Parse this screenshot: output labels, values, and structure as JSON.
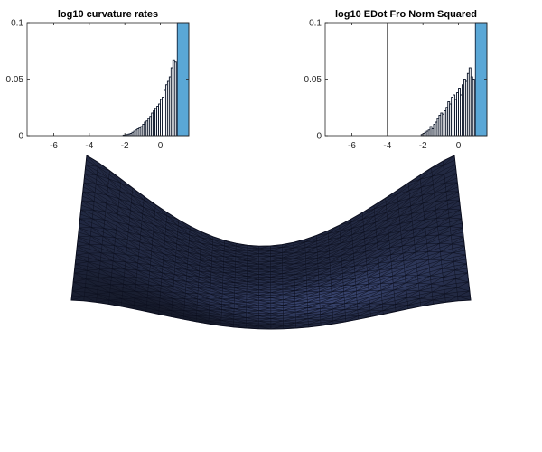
{
  "colors": {
    "bar_face": "#ffffff",
    "bar_edge": "#0a1428",
    "highlight_bar": "#5aa7d6",
    "mesh_fill": "#3d4a78",
    "mesh_edge": "#0b0e1e",
    "axis": "#262626"
  },
  "chart_data": [
    {
      "type": "bar",
      "title": "log10 curvature rates",
      "xlim": [
        -7.5,
        1.6
      ],
      "ylim": [
        0,
        0.1
      ],
      "xticks": [
        -6,
        -4,
        -2,
        0
      ],
      "yticks": [
        0,
        0.05,
        0.1
      ],
      "xticklabels": [
        "-6",
        "-4",
        "-2",
        "0"
      ],
      "yticklabels": [
        "0",
        "0.05",
        "0.1"
      ],
      "reference_line_x": -3,
      "bin_width": 0.1,
      "bins_x": [
        -2.05,
        -1.95,
        -1.85,
        -1.75,
        -1.65,
        -1.55,
        -1.45,
        -1.35,
        -1.25,
        -1.15,
        -1.05,
        -0.95,
        -0.85,
        -0.75,
        -0.65,
        -0.55,
        -0.45,
        -0.35,
        -0.25,
        -0.15,
        -0.05,
        0.05,
        0.15,
        0.25,
        0.35,
        0.45,
        0.55,
        0.65,
        0.75,
        0.85
      ],
      "values": [
        0.0005,
        0.0008,
        0.001,
        0.0015,
        0.002,
        0.003,
        0.004,
        0.005,
        0.006,
        0.007,
        0.008,
        0.01,
        0.012,
        0.013,
        0.015,
        0.017,
        0.02,
        0.022,
        0.024,
        0.026,
        0.028,
        0.032,
        0.034,
        0.04,
        0.045,
        0.048,
        0.052,
        0.06,
        0.067,
        0.065
      ],
      "highlight_bar": {
        "x_start": 0.95,
        "x_end": 1.6,
        "value": 0.1
      }
    },
    {
      "type": "bar",
      "title": "log10 EDot Fro Norm Squared",
      "xlim": [
        -7.5,
        1.6
      ],
      "ylim": [
        0,
        0.1
      ],
      "xticks": [
        -6,
        -4,
        -2,
        0
      ],
      "yticks": [
        0,
        0.05,
        0.1
      ],
      "xticklabels": [
        "-6",
        "-4",
        "-2",
        "0"
      ],
      "yticklabels": [
        "0",
        "0.05",
        "0.1"
      ],
      "reference_line_x": -4,
      "bin_width": 0.1,
      "bins_x": [
        -2.05,
        -1.95,
        -1.85,
        -1.75,
        -1.65,
        -1.55,
        -1.45,
        -1.35,
        -1.25,
        -1.15,
        -1.05,
        -0.95,
        -0.85,
        -0.75,
        -0.65,
        -0.55,
        -0.45,
        -0.35,
        -0.25,
        -0.15,
        -0.05,
        0.05,
        0.15,
        0.25,
        0.35,
        0.45,
        0.55,
        0.65,
        0.75,
        0.85
      ],
      "values": [
        0.001,
        0.002,
        0.003,
        0.004,
        0.005,
        0.008,
        0.006,
        0.01,
        0.012,
        0.015,
        0.018,
        0.02,
        0.019,
        0.022,
        0.025,
        0.03,
        0.028,
        0.034,
        0.036,
        0.032,
        0.038,
        0.042,
        0.036,
        0.045,
        0.05,
        0.048,
        0.055,
        0.06,
        0.052,
        0.05
      ],
      "highlight_bar": {
        "x_start": 0.95,
        "x_end": 1.6,
        "value": 0.1
      }
    },
    {
      "type": "surface",
      "surface_kind": "triangulated mesh sheet",
      "mesh_resolution": 32
    }
  ]
}
